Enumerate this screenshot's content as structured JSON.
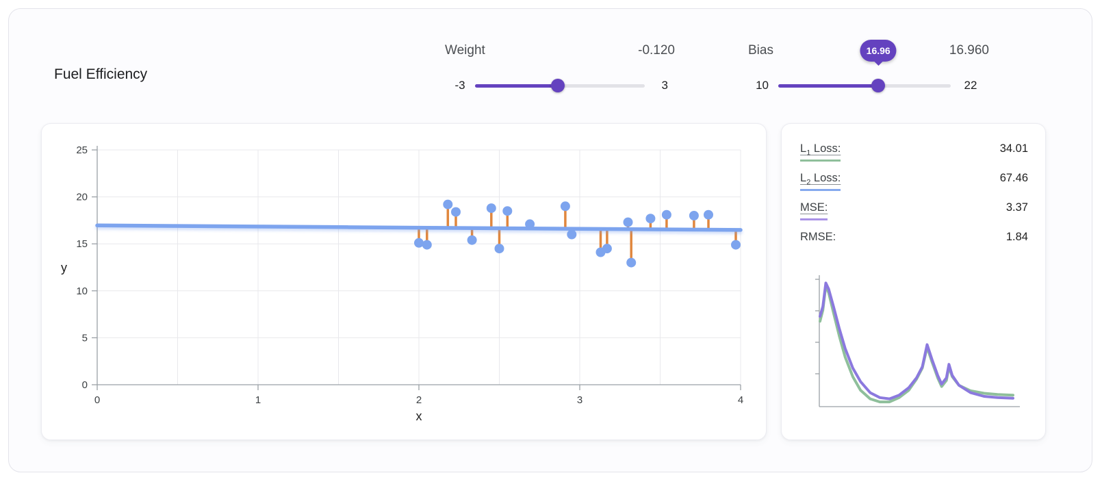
{
  "page": {
    "title": "Fuel Efficiency"
  },
  "controls": {
    "weight": {
      "label": "Weight",
      "value": -0.12,
      "value_display": "-0.120",
      "min": -3,
      "max": 3,
      "min_label": "-3",
      "max_label": "3"
    },
    "bias": {
      "label": "Bias",
      "value": 16.96,
      "value_display": "16.960",
      "tooltip": "16.96",
      "min": 10,
      "max": 22,
      "min_label": "10",
      "max_label": "22"
    }
  },
  "losses": {
    "rows": [
      {
        "prefix": "L",
        "sub": "1",
        "suffix": " Loss:",
        "value": "34.01",
        "color": "#8fbf9b"
      },
      {
        "prefix": "L",
        "sub": "2",
        "suffix": " Loss:",
        "value": "67.46",
        "color": "#85a9ee"
      },
      {
        "prefix": "MSE:",
        "sub": "",
        "suffix": "",
        "value": "3.37",
        "color": "#a991e6"
      },
      {
        "prefix": "RMSE:",
        "sub": "",
        "suffix": "",
        "value": "1.84",
        "color": ""
      }
    ]
  },
  "theme": {
    "accent_purple": "#6442bf",
    "slider_track": "#e2e2e7",
    "point_blue": "#7da4ee",
    "residual_orange": "#e0873e",
    "grid": "#e8e8ec",
    "axis": "#9aa0a6"
  },
  "chart_data": [
    {
      "type": "scatter",
      "title": "",
      "xlabel": "x",
      "ylabel": "y",
      "xlim": [
        0,
        4
      ],
      "ylim": [
        0,
        25
      ],
      "x_ticks": [
        0,
        1,
        2,
        3,
        4
      ],
      "y_ticks": [
        0,
        5,
        10,
        15,
        20,
        25
      ],
      "x_grid_step": 0.5,
      "grid": true,
      "line": {
        "type": "linear",
        "weight": -0.12,
        "bias": 16.96
      },
      "points": [
        [
          2.0,
          15.1
        ],
        [
          2.05,
          14.9
        ],
        [
          2.18,
          19.2
        ],
        [
          2.23,
          18.4
        ],
        [
          2.33,
          15.4
        ],
        [
          2.45,
          18.8
        ],
        [
          2.5,
          14.5
        ],
        [
          2.55,
          18.5
        ],
        [
          2.69,
          17.1
        ],
        [
          2.91,
          19.0
        ],
        [
          2.95,
          16.0
        ],
        [
          3.13,
          14.1
        ],
        [
          3.17,
          14.5
        ],
        [
          3.3,
          17.3
        ],
        [
          3.32,
          13.0
        ],
        [
          3.44,
          17.7
        ],
        [
          3.54,
          18.1
        ],
        [
          3.71,
          18.0
        ],
        [
          3.8,
          18.1
        ],
        [
          3.97,
          14.9
        ]
      ]
    },
    {
      "type": "line",
      "title": "loss-curve",
      "x_range": [
        0,
        1
      ],
      "y_range": [
        0,
        1
      ],
      "series": [
        {
          "name": "L1-loss-curve",
          "color": "#8fbf9b",
          "points": [
            [
              0.0,
              0.66
            ],
            [
              0.015,
              0.75
            ],
            [
              0.03,
              0.95
            ],
            [
              0.045,
              0.89
            ],
            [
              0.07,
              0.73
            ],
            [
              0.1,
              0.54
            ],
            [
              0.13,
              0.37
            ],
            [
              0.17,
              0.21
            ],
            [
              0.21,
              0.1
            ],
            [
              0.26,
              0.03
            ],
            [
              0.31,
              0.005
            ],
            [
              0.36,
              0.005
            ],
            [
              0.41,
              0.04
            ],
            [
              0.46,
              0.1
            ],
            [
              0.5,
              0.19
            ],
            [
              0.53,
              0.28
            ],
            [
              0.555,
              0.45
            ],
            [
              0.58,
              0.33
            ],
            [
              0.61,
              0.2
            ],
            [
              0.63,
              0.13
            ],
            [
              0.655,
              0.18
            ],
            [
              0.668,
              0.29
            ],
            [
              0.685,
              0.21
            ],
            [
              0.72,
              0.14
            ],
            [
              0.78,
              0.095
            ],
            [
              0.85,
              0.075
            ],
            [
              0.92,
              0.065
            ],
            [
              1.0,
              0.06
            ]
          ]
        },
        {
          "name": "MSE-loss-curve",
          "color": "#8b79de",
          "points": [
            [
              0.0,
              0.7
            ],
            [
              0.015,
              0.78
            ],
            [
              0.03,
              0.97
            ],
            [
              0.045,
              0.92
            ],
            [
              0.07,
              0.78
            ],
            [
              0.1,
              0.6
            ],
            [
              0.13,
              0.44
            ],
            [
              0.17,
              0.28
            ],
            [
              0.21,
              0.17
            ],
            [
              0.26,
              0.08
            ],
            [
              0.31,
              0.04
            ],
            [
              0.36,
              0.03
            ],
            [
              0.41,
              0.06
            ],
            [
              0.46,
              0.12
            ],
            [
              0.5,
              0.2
            ],
            [
              0.53,
              0.29
            ],
            [
              0.555,
              0.47
            ],
            [
              0.58,
              0.35
            ],
            [
              0.61,
              0.22
            ],
            [
              0.63,
              0.15
            ],
            [
              0.655,
              0.2
            ],
            [
              0.668,
              0.31
            ],
            [
              0.685,
              0.22
            ],
            [
              0.72,
              0.14
            ],
            [
              0.78,
              0.08
            ],
            [
              0.85,
              0.05
            ],
            [
              0.92,
              0.04
            ],
            [
              1.0,
              0.035
            ]
          ]
        }
      ]
    }
  ]
}
